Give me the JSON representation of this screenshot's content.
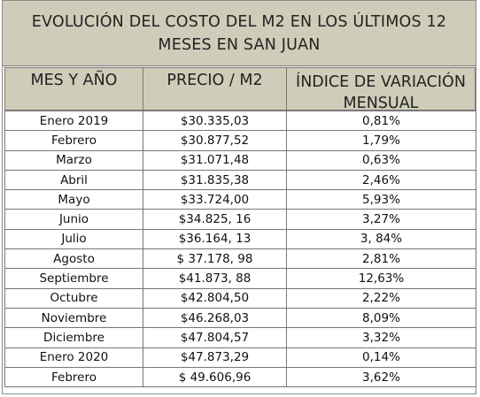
{
  "title": {
    "line1": "EVOLUCIÓN DEL COSTO DEL M2 EN LOS ÚLTIMOS 12",
    "line2": "MESES EN SAN JUAN"
  },
  "headers": {
    "col1": "MES Y AÑO",
    "col2": "PRECIO / M2",
    "col3_line1": "ÍNDICE DE VARIACIÓN",
    "col3_line2": "MENSUAL"
  },
  "chart_data": {
    "type": "table",
    "title": "EVOLUCIÓN DEL COSTO DEL M2 EN LOS ÚLTIMOS 12 MESES EN SAN JUAN",
    "columns": [
      "MES Y AÑO",
      "PRECIO / M2",
      "ÍNDICE DE VARIACIÓN MENSUAL"
    ],
    "rows": [
      [
        "Enero 2019",
        "$30.335,03",
        "0,81%"
      ],
      [
        "Febrero",
        "$30.877,52",
        "1,79%"
      ],
      [
        "Marzo",
        "$31.071,48",
        "0,63%"
      ],
      [
        "Abril",
        "$31.835,38",
        "2,46%"
      ],
      [
        "Mayo",
        "$33.724,00",
        "5,93%"
      ],
      [
        "Junio",
        "$34.825, 16",
        "3,27%"
      ],
      [
        "Julio",
        "$36.164, 13",
        "3, 84%"
      ],
      [
        "Agosto",
        "$ 37.178, 98",
        "2,81%"
      ],
      [
        "Septiembre",
        "$41.873, 88",
        "12,63%"
      ],
      [
        "Octubre",
        "$42.804,50",
        "2,22%"
      ],
      [
        "Noviembre",
        "$46.268,03",
        "8,09%"
      ],
      [
        "Diciembre",
        "$47.804,57",
        "3,32%"
      ],
      [
        "Enero 2020",
        "$47.873,29",
        "0,14%"
      ],
      [
        "Febrero",
        "$ 49.606,96",
        "3,62%"
      ]
    ]
  }
}
